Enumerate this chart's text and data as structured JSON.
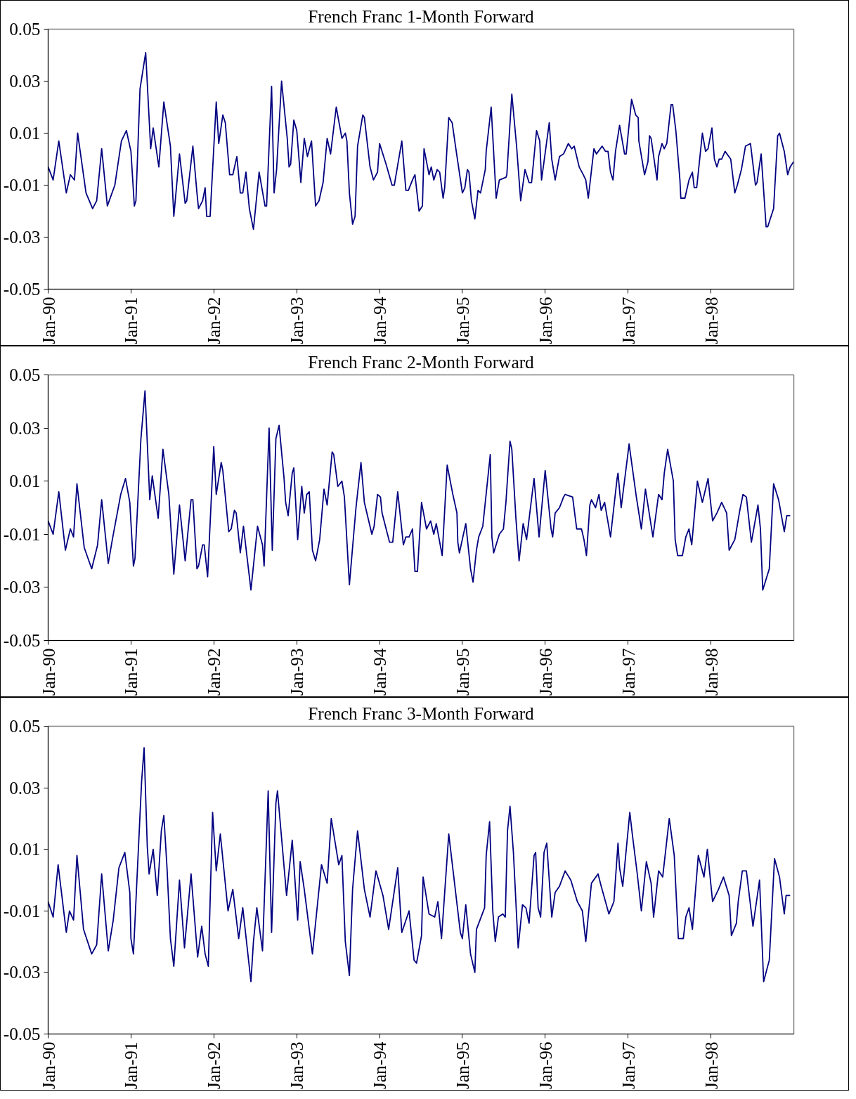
{
  "chart_data": [
    {
      "type": "line",
      "title": "French Franc 1-Month Forward",
      "x": [
        "1990-01-01",
        "1990-01-23",
        "1990-02-17",
        "1990-03-22",
        "1990-04-09",
        "1990-04-27",
        "1990-05-11",
        "1990-06-17",
        "1990-07-16",
        "1990-08-03",
        "1990-08-25",
        "1990-09-19",
        "1990-10-22",
        "1990-11-20",
        "1990-12-12",
        "1991-01-01",
        "1991-01-16",
        "1991-01-23",
        "1991-02-10",
        "1991-03-07",
        "1991-03-29",
        "1991-04-09",
        "1991-05-04",
        "1991-05-26",
        "1991-06-24",
        "1991-07-09",
        "1991-08-03",
        "1991-08-28",
        "1991-09-04",
        "1991-10-01",
        "1991-10-19",
        "1991-10-26",
        "1991-11-13",
        "1991-11-24",
        "1991-12-01",
        "1991-12-16",
        "1992-01-12",
        "1992-01-23",
        "1992-02-10",
        "1992-02-21",
        "1992-03-11",
        "1992-03-25",
        "1992-04-12",
        "1992-04-27",
        "1992-05-08",
        "1992-05-22",
        "1992-06-06",
        "1992-06-24",
        "1992-07-19",
        "1992-08-14",
        "1992-08-21",
        "1992-09-12",
        "1992-09-23",
        "1992-10-04",
        "1992-10-26",
        "1992-11-20",
        "1992-11-28",
        "1992-12-05",
        "1992-12-19",
        "1993-01-01",
        "1993-01-19",
        "1993-02-03",
        "1993-02-17",
        "1993-03-07",
        "1993-03-25",
        "1993-04-09",
        "1993-04-27",
        "1993-05-15",
        "1993-05-30",
        "1993-06-24",
        "1993-07-19",
        "1993-08-03",
        "1993-08-10",
        "1993-08-21",
        "1993-09-04",
        "1993-09-15",
        "1993-09-26",
        "1993-10-19",
        "1993-10-26",
        "1993-11-20",
        "1993-12-05",
        "1993-12-23",
        "1994-01-01",
        "1994-01-30",
        "1994-02-25",
        "1994-03-07",
        "1994-04-09",
        "1994-04-27",
        "1994-05-08",
        "1994-05-26",
        "1994-06-06",
        "1994-06-24",
        "1994-07-09",
        "1994-07-16",
        "1994-08-07",
        "1994-08-17",
        "1994-08-28",
        "1994-09-12",
        "1994-09-23",
        "1994-10-08",
        "1994-10-15",
        "1994-11-02",
        "1994-11-17",
        "1994-12-05",
        "1995-01-01",
        "1995-01-12",
        "1995-01-23",
        "1995-01-30",
        "1995-02-10",
        "1995-02-25",
        "1995-03-11",
        "1995-03-22",
        "1995-04-12",
        "1995-04-16",
        "1995-05-08",
        "1995-05-30",
        "1995-06-13",
        "1995-07-12",
        "1995-07-16",
        "1995-08-07",
        "1995-08-28",
        "1995-09-15",
        "1995-10-04",
        "1995-10-22",
        "1995-11-02",
        "1995-11-24",
        "1995-12-08",
        "1995-12-16",
        "1996-01-19",
        "1996-01-30",
        "1996-02-14",
        "1996-03-04",
        "1996-03-22",
        "1996-04-12",
        "1996-04-27",
        "1996-05-08",
        "1996-05-30",
        "1996-06-17",
        "1996-06-28",
        "1996-07-09",
        "1996-08-03",
        "1996-08-14",
        "1996-09-08",
        "1996-09-23",
        "1996-10-04",
        "1996-10-15",
        "1996-10-26",
        "1996-11-06",
        "1996-11-24",
        "1996-12-16",
        "1996-12-23",
        "1997-01-16",
        "1997-02-03",
        "1997-02-14",
        "1997-02-17",
        "1997-03-14",
        "1997-03-29",
        "1997-04-05",
        "1997-04-12",
        "1997-05-08",
        "1997-05-15",
        "1997-05-30",
        "1997-06-09",
        "1997-06-20",
        "1997-07-09",
        "1997-07-16",
        "1997-07-30",
        "1997-08-17",
        "1997-08-21",
        "1997-09-08",
        "1997-09-26",
        "1997-10-11",
        "1997-10-19",
        "1997-10-30",
        "1997-11-24",
        "1997-12-08",
        "1997-12-19",
        "1998-01-05",
        "1998-01-16",
        "1998-01-27",
        "1998-02-06",
        "1998-02-17",
        "1998-03-04",
        "1998-03-29",
        "1998-04-16",
        "1998-04-27",
        "1998-05-15",
        "1998-06-02",
        "1998-06-24",
        "1998-07-16",
        "1998-07-23",
        "1998-08-10",
        "1998-09-01",
        "1998-09-08",
        "1998-10-04",
        "1998-10-22",
        "1998-10-30",
        "1998-11-20",
        "1998-12-05",
        "1998-12-16",
        "1998-12-31"
      ],
      "series": [
        {
          "color": "#000080",
          "values": [
            -0.003,
            -0.008,
            0.007,
            -0.013,
            -0.006,
            -0.008,
            0.01,
            -0.013,
            -0.019,
            -0.016,
            0.004,
            -0.018,
            -0.01,
            0.007,
            0.011,
            0.003,
            -0.018,
            -0.016,
            0.027,
            0.041,
            0.004,
            0.012,
            -0.003,
            0.022,
            0.005,
            -0.022,
            0.002,
            -0.017,
            -0.016,
            0.005,
            -0.013,
            -0.019,
            -0.016,
            -0.011,
            -0.022,
            -0.022,
            0.022,
            0.006,
            0.017,
            0.014,
            -0.006,
            -0.006,
            0.001,
            -0.013,
            -0.013,
            -0.005,
            -0.019,
            -0.027,
            -0.005,
            -0.018,
            -0.018,
            0.028,
            -0.013,
            -0.004,
            0.03,
            0.008,
            -0.003,
            -0.002,
            0.015,
            0.011,
            -0.009,
            0.008,
            0.001,
            0.007,
            -0.018,
            -0.016,
            -0.009,
            0.008,
            0.002,
            0.02,
            0.008,
            0.01,
            0.007,
            -0.013,
            -0.025,
            -0.022,
            0.005,
            0.017,
            0.016,
            -0.003,
            -0.008,
            -0.005,
            0.006,
            -0.002,
            -0.01,
            -0.01,
            0.007,
            -0.012,
            -0.012,
            -0.008,
            -0.006,
            -0.02,
            -0.018,
            0.004,
            -0.006,
            -0.003,
            -0.008,
            -0.004,
            -0.005,
            -0.015,
            -0.011,
            0.016,
            0.014,
            0.003,
            -0.013,
            -0.011,
            -0.004,
            -0.005,
            -0.016,
            -0.023,
            -0.012,
            -0.013,
            -0.004,
            0.003,
            0.02,
            -0.015,
            -0.008,
            -0.007,
            -0.006,
            0.025,
            0.005,
            -0.016,
            -0.004,
            -0.009,
            -0.009,
            0.011,
            0.007,
            -0.008,
            0.014,
            0.0,
            -0.008,
            0.001,
            0.002,
            0.006,
            0.004,
            0.005,
            -0.003,
            -0.006,
            -0.008,
            -0.015,
            0.004,
            0.002,
            0.005,
            0.003,
            0.003,
            -0.005,
            -0.008,
            0.003,
            0.013,
            0.002,
            0.002,
            0.023,
            0.017,
            0.016,
            0.007,
            -0.006,
            -0.001,
            0.009,
            0.008,
            -0.008,
            0.001,
            0.006,
            0.004,
            0.006,
            0.021,
            0.021,
            0.011,
            -0.008,
            -0.015,
            -0.015,
            -0.008,
            -0.005,
            -0.011,
            -0.011,
            0.01,
            0.003,
            0.004,
            0.012,
            0.0,
            -0.003,
            0.0,
            0.0,
            0.003,
            0.0,
            -0.013,
            -0.01,
            -0.004,
            0.005,
            0.006,
            -0.01,
            -0.009,
            0.002,
            -0.026,
            -0.026,
            -0.019,
            0.009,
            0.01,
            0.003,
            -0.006,
            -0.003,
            -0.001
          ]
        }
      ],
      "xlim": [
        "1990-01-01",
        "1999-01-01"
      ],
      "ylim": [
        -0.05,
        0.05
      ],
      "xticks": [
        {
          "value": "1990-01-01",
          "label": "Jan-90"
        },
        {
          "value": "1991-01-01",
          "label": "Jan-91"
        },
        {
          "value": "1992-01-01",
          "label": "Jan-92"
        },
        {
          "value": "1993-01-01",
          "label": "Jan-93"
        },
        {
          "value": "1994-01-01",
          "label": "Jan-94"
        },
        {
          "value": "1995-01-01",
          "label": "Jan-95"
        },
        {
          "value": "1996-01-01",
          "label": "Jan-96"
        },
        {
          "value": "1997-01-01",
          "label": "Jan-97"
        },
        {
          "value": "1998-01-01",
          "label": "Jan-98"
        }
      ],
      "yticks": [
        0.05,
        0.03,
        0.01,
        -0.01,
        -0.03,
        -0.05
      ]
    },
    {
      "type": "line",
      "title": "French Franc 2-Month Forward",
      "x": [
        "1990-01-01",
        "1990-01-23",
        "1990-02-17",
        "1990-03-18",
        "1990-04-09",
        "1990-04-23",
        "1990-05-08",
        "1990-06-09",
        "1990-07-12",
        "1990-08-07",
        "1990-08-25",
        "1990-09-23",
        "1990-10-11",
        "1990-11-17",
        "1990-12-08",
        "1990-12-27",
        "1991-01-12",
        "1991-01-19",
        "1991-02-14",
        "1991-03-04",
        "1991-03-25",
        "1991-04-05",
        "1991-05-01",
        "1991-05-22",
        "1991-06-17",
        "1991-07-09",
        "1991-08-03",
        "1991-08-28",
        "1991-09-23",
        "1991-10-01",
        "1991-10-19",
        "1991-10-26",
        "1991-11-13",
        "1991-11-20",
        "1991-12-05",
        "1992-01-01",
        "1992-01-12",
        "1992-02-03",
        "1992-02-10",
        "1992-03-07",
        "1992-03-18",
        "1992-04-01",
        "1992-04-09",
        "1992-04-27",
        "1992-05-11",
        "1992-05-26",
        "1992-06-13",
        "1992-07-12",
        "1992-08-03",
        "1992-08-10",
        "1992-09-01",
        "1992-09-15",
        "1992-10-01",
        "1992-10-15",
        "1992-11-06",
        "1992-11-13",
        "1992-11-24",
        "1992-12-12",
        "1992-12-19",
        "1993-01-05",
        "1993-01-23",
        "1993-02-03",
        "1993-02-14",
        "1993-02-25",
        "1993-03-11",
        "1993-03-25",
        "1993-04-12",
        "1993-05-01",
        "1993-05-15",
        "1993-06-06",
        "1993-06-13",
        "1993-07-01",
        "1993-07-19",
        "1993-07-30",
        "1993-08-21",
        "1993-09-19",
        "1993-10-11",
        "1993-10-26",
        "1993-11-28",
        "1993-12-08",
        "1993-12-23",
        "1994-01-05",
        "1994-01-12",
        "1994-02-14",
        "1994-02-28",
        "1994-03-22",
        "1994-04-16",
        "1994-04-27",
        "1994-05-11",
        "1994-05-26",
        "1994-06-06",
        "1994-06-17",
        "1994-07-05",
        "1994-07-27",
        "1994-08-14",
        "1994-08-28",
        "1994-09-08",
        "1994-10-04",
        "1994-10-26",
        "1994-11-20",
        "1994-12-08",
        "1994-12-12",
        "1994-12-19",
        "1995-01-16",
        "1995-02-06",
        "1995-02-17",
        "1995-03-04",
        "1995-03-14",
        "1995-04-01",
        "1995-05-04",
        "1995-05-11",
        "1995-05-19",
        "1995-06-13",
        "1995-07-01",
        "1995-07-12",
        "1995-07-30",
        "1995-08-07",
        "1995-08-25",
        "1995-09-08",
        "1995-09-26",
        "1995-10-11",
        "1995-11-13",
        "1995-12-05",
        "1996-01-01",
        "1996-01-27",
        "1996-02-03",
        "1996-02-14",
        "1996-03-04",
        "1996-03-22",
        "1996-03-29",
        "1996-05-01",
        "1996-05-19",
        "1996-06-09",
        "1996-06-20",
        "1996-07-01",
        "1996-07-16",
        "1996-07-23",
        "1996-08-10",
        "1996-08-25",
        "1996-09-04",
        "1996-09-19",
        "1996-10-15",
        "1996-11-13",
        "1996-11-17",
        "1996-12-01",
        "1997-01-05",
        "1997-01-16",
        "1997-02-06",
        "1997-02-28",
        "1997-03-18",
        "1997-04-20",
        "1997-05-15",
        "1997-05-30",
        "1997-06-09",
        "1997-06-24",
        "1997-07-19",
        "1997-07-27",
        "1997-08-07",
        "1997-08-28",
        "1997-09-12",
        "1997-09-26",
        "1997-10-08",
        "1997-11-02",
        "1997-11-24",
        "1997-12-19",
        "1998-01-08",
        "1998-01-27",
        "1998-02-17",
        "1998-03-11",
        "1998-03-22",
        "1998-04-16",
        "1998-05-08",
        "1998-05-22",
        "1998-06-06",
        "1998-06-28",
        "1998-07-27",
        "1998-08-07",
        "1998-08-17",
        "1998-09-15",
        "1998-10-04",
        "1998-10-26",
        "1998-11-20",
        "1998-12-01",
        "1998-12-16"
      ],
      "series": [
        {
          "color": "#000080",
          "values": [
            -0.005,
            -0.01,
            0.006,
            -0.016,
            -0.008,
            -0.011,
            0.009,
            -0.015,
            -0.023,
            -0.014,
            0.003,
            -0.021,
            -0.012,
            0.005,
            0.011,
            0.002,
            -0.022,
            -0.019,
            0.026,
            0.044,
            0.003,
            0.012,
            -0.004,
            0.022,
            0.005,
            -0.025,
            0.001,
            -0.02,
            0.003,
            0.003,
            -0.023,
            -0.022,
            -0.014,
            -0.014,
            -0.026,
            0.023,
            0.005,
            0.017,
            0.014,
            -0.009,
            -0.008,
            -0.001,
            -0.002,
            -0.017,
            -0.007,
            -0.018,
            -0.031,
            -0.007,
            -0.014,
            -0.022,
            0.03,
            -0.016,
            0.026,
            0.031,
            0.011,
            0.002,
            -0.003,
            0.013,
            0.015,
            -0.012,
            0.008,
            -0.002,
            0.005,
            0.006,
            -0.016,
            -0.02,
            -0.012,
            0.007,
            0.001,
            0.021,
            0.02,
            0.008,
            0.01,
            0.004,
            -0.029,
            0.0,
            0.017,
            0.002,
            -0.01,
            -0.007,
            0.005,
            0.004,
            -0.002,
            -0.013,
            -0.013,
            0.006,
            -0.014,
            -0.011,
            -0.011,
            -0.008,
            -0.024,
            -0.024,
            0.002,
            -0.008,
            -0.005,
            -0.01,
            -0.006,
            -0.018,
            0.016,
            0.005,
            -0.002,
            -0.013,
            -0.017,
            -0.006,
            -0.023,
            -0.028,
            -0.016,
            -0.011,
            -0.007,
            0.02,
            -0.011,
            -0.017,
            -0.01,
            -0.008,
            0.002,
            0.025,
            0.022,
            -0.004,
            -0.02,
            -0.006,
            -0.012,
            0.011,
            -0.011,
            0.014,
            -0.008,
            -0.011,
            -0.002,
            0.0,
            0.004,
            0.005,
            0.004,
            -0.008,
            -0.008,
            -0.012,
            -0.018,
            0.001,
            0.003,
            0.0,
            0.005,
            -0.001,
            0.002,
            -0.011,
            0.011,
            0.013,
            0.0,
            0.024,
            0.017,
            0.004,
            -0.008,
            0.007,
            -0.011,
            0.005,
            0.003,
            0.013,
            0.022,
            0.01,
            -0.012,
            -0.018,
            -0.018,
            -0.011,
            -0.008,
            -0.014,
            0.01,
            0.002,
            0.011,
            -0.005,
            -0.002,
            0.002,
            -0.002,
            -0.016,
            -0.012,
            -0.001,
            0.005,
            0.004,
            -0.013,
            0.001,
            -0.008,
            -0.031,
            -0.023,
            0.009,
            0.003,
            -0.009,
            -0.003,
            -0.003
          ]
        }
      ],
      "xlim": [
        "1990-01-01",
        "1999-01-01"
      ],
      "ylim": [
        -0.05,
        0.05
      ],
      "xticks": [
        {
          "value": "1990-01-01",
          "label": "Jan-90"
        },
        {
          "value": "1991-01-01",
          "label": "Jan-91"
        },
        {
          "value": "1992-01-01",
          "label": "Jan-92"
        },
        {
          "value": "1993-01-01",
          "label": "Jan-93"
        },
        {
          "value": "1994-01-01",
          "label": "Jan-94"
        },
        {
          "value": "1995-01-01",
          "label": "Jan-95"
        },
        {
          "value": "1996-01-01",
          "label": "Jan-96"
        },
        {
          "value": "1997-01-01",
          "label": "Jan-97"
        },
        {
          "value": "1998-01-01",
          "label": "Jan-98"
        }
      ],
      "yticks": [
        0.05,
        0.03,
        0.01,
        -0.01,
        -0.03,
        -0.05
      ]
    },
    {
      "type": "line",
      "title": "French Franc 3-Month Forward",
      "x": [
        "1990-01-01",
        "1990-01-23",
        "1990-02-14",
        "1990-03-22",
        "1990-04-05",
        "1990-04-23",
        "1990-05-08",
        "1990-06-06",
        "1990-07-12",
        "1990-08-03",
        "1990-08-25",
        "1990-09-23",
        "1990-10-15",
        "1990-11-09",
        "1990-12-05",
        "1990-12-27",
        "1991-01-01",
        "1991-01-12",
        "1991-02-06",
        "1991-02-17",
        "1991-02-28",
        "1991-03-14",
        "1991-03-22",
        "1991-04-09",
        "1991-04-27",
        "1991-05-15",
        "1991-05-26",
        "1991-06-09",
        "1991-06-24",
        "1991-07-09",
        "1991-08-03",
        "1991-08-25",
        "1991-09-23",
        "1991-10-22",
        "1991-11-09",
        "1991-11-24",
        "1991-12-08",
        "1991-12-27",
        "1992-01-12",
        "1992-01-30",
        "1992-03-04",
        "1992-03-25",
        "1992-04-20",
        "1992-05-08",
        "1992-06-13",
        "1992-06-24",
        "1992-07-09",
        "1992-08-03",
        "1992-08-28",
        "1992-09-12",
        "1992-10-01",
        "1992-10-08",
        "1992-11-17",
        "1992-12-12",
        "1993-01-05",
        "1993-01-16",
        "1993-02-03",
        "1993-03-11",
        "1993-04-20",
        "1993-05-15",
        "1993-06-02",
        "1993-07-05",
        "1993-07-19",
        "1993-08-03",
        "1993-08-21",
        "1993-09-04",
        "1993-09-26",
        "1993-10-26",
        "1993-11-20",
        "1993-12-16",
        "1994-01-16",
        "1994-02-10",
        "1994-03-22",
        "1994-04-09",
        "1994-05-11",
        "1994-06-02",
        "1994-06-13",
        "1994-07-05",
        "1994-07-12",
        "1994-08-07",
        "1994-09-01",
        "1994-09-15",
        "1994-10-01",
        "1994-11-02",
        "1994-12-23",
        "1995-01-01",
        "1995-01-16",
        "1995-02-06",
        "1995-02-25",
        "1995-03-04",
        "1995-04-09",
        "1995-04-16",
        "1995-05-01",
        "1995-05-15",
        "1995-05-26",
        "1995-06-09",
        "1995-06-28",
        "1995-07-09",
        "1995-07-19",
        "1995-07-30",
        "1995-08-14",
        "1995-09-04",
        "1995-09-23",
        "1995-10-08",
        "1995-10-22",
        "1995-11-13",
        "1995-11-20",
        "1995-12-01",
        "1995-12-12",
        "1995-12-27",
        "1996-01-08",
        "1996-01-30",
        "1996-02-14",
        "1996-03-04",
        "1996-03-29",
        "1996-04-23",
        "1996-05-22",
        "1996-06-13",
        "1996-06-28",
        "1996-07-23",
        "1996-08-21",
        "1996-09-04",
        "1996-10-08",
        "1996-10-30",
        "1996-11-17",
        "1996-11-24",
        "1996-12-08",
        "1997-01-08",
        "1997-01-19",
        "1997-02-10",
        "1997-02-28",
        "1997-03-22",
        "1997-04-12",
        "1997-04-23",
        "1997-05-15",
        "1997-06-02",
        "1997-07-01",
        "1997-07-23",
        "1997-08-10",
        "1997-09-01",
        "1997-09-12",
        "1997-09-26",
        "1997-10-11",
        "1997-11-06",
        "1997-12-01",
        "1997-12-16",
        "1998-01-08",
        "1998-02-03",
        "1998-02-25",
        "1998-03-22",
        "1998-04-01",
        "1998-04-23",
        "1998-05-01",
        "1998-05-19",
        "1998-06-06",
        "1998-07-05",
        "1998-08-03",
        "1998-08-21",
        "1998-09-15",
        "1998-10-08",
        "1998-10-30",
        "1998-11-20",
        "1998-11-28",
        "1998-12-16"
      ],
      "series": [
        {
          "color": "#000080",
          "values": [
            -0.007,
            -0.012,
            0.005,
            -0.017,
            -0.01,
            -0.013,
            0.008,
            -0.016,
            -0.024,
            -0.021,
            0.002,
            -0.023,
            -0.013,
            0.004,
            0.009,
            -0.004,
            -0.019,
            -0.024,
            0.015,
            0.032,
            0.043,
            0.011,
            0.002,
            0.01,
            -0.005,
            0.016,
            0.021,
            0.004,
            -0.019,
            -0.028,
            0.0,
            -0.022,
            0.002,
            -0.025,
            -0.015,
            -0.024,
            -0.028,
            0.022,
            0.003,
            0.015,
            -0.01,
            -0.003,
            -0.019,
            -0.009,
            -0.033,
            -0.02,
            -0.009,
            -0.023,
            0.029,
            -0.017,
            0.025,
            0.029,
            -0.005,
            0.013,
            -0.013,
            0.006,
            -0.003,
            -0.024,
            0.005,
            -0.001,
            0.02,
            0.005,
            0.008,
            -0.02,
            -0.031,
            -0.003,
            0.016,
            -0.003,
            -0.012,
            0.003,
            -0.005,
            -0.016,
            0.004,
            -0.017,
            -0.01,
            -0.026,
            -0.027,
            -0.018,
            0.001,
            -0.011,
            -0.012,
            -0.007,
            -0.019,
            0.015,
            -0.017,
            -0.019,
            -0.008,
            -0.024,
            -0.03,
            -0.016,
            -0.009,
            0.008,
            0.019,
            -0.01,
            -0.02,
            -0.012,
            -0.011,
            -0.012,
            0.016,
            0.024,
            0.009,
            -0.022,
            -0.008,
            -0.009,
            -0.014,
            0.008,
            0.009,
            -0.009,
            -0.012,
            0.009,
            0.012,
            -0.012,
            -0.004,
            -0.002,
            0.003,
            0.0,
            -0.007,
            -0.01,
            -0.02,
            -0.001,
            0.002,
            -0.002,
            -0.011,
            -0.007,
            0.012,
            0.004,
            -0.002,
            0.022,
            0.015,
            0.002,
            -0.01,
            0.006,
            -0.001,
            -0.012,
            0.003,
            0.001,
            0.02,
            0.008,
            -0.019,
            -0.019,
            -0.012,
            -0.009,
            -0.016,
            0.008,
            0.001,
            0.01,
            -0.007,
            -0.003,
            0.001,
            -0.005,
            -0.018,
            -0.014,
            -0.007,
            0.003,
            0.003,
            -0.015,
            0.0,
            -0.033,
            -0.026,
            0.007,
            0.001,
            -0.011,
            -0.005,
            -0.005
          ]
        }
      ],
      "xlim": [
        "1990-01-01",
        "1999-01-01"
      ],
      "ylim": [
        -0.05,
        0.05
      ],
      "xticks": [
        {
          "value": "1990-01-01",
          "label": "Jan-90"
        },
        {
          "value": "1991-01-01",
          "label": "Jan-91"
        },
        {
          "value": "1992-01-01",
          "label": "Jan-92"
        },
        {
          "value": "1993-01-01",
          "label": "Jan-93"
        },
        {
          "value": "1994-01-01",
          "label": "Jan-94"
        },
        {
          "value": "1995-01-01",
          "label": "Jan-95"
        },
        {
          "value": "1996-01-01",
          "label": "Jan-96"
        },
        {
          "value": "1997-01-01",
          "label": "Jan-97"
        },
        {
          "value": "1998-01-01",
          "label": "Jan-98"
        }
      ],
      "yticks": [
        0.05,
        0.03,
        0.01,
        -0.01,
        -0.03,
        -0.05
      ]
    }
  ]
}
